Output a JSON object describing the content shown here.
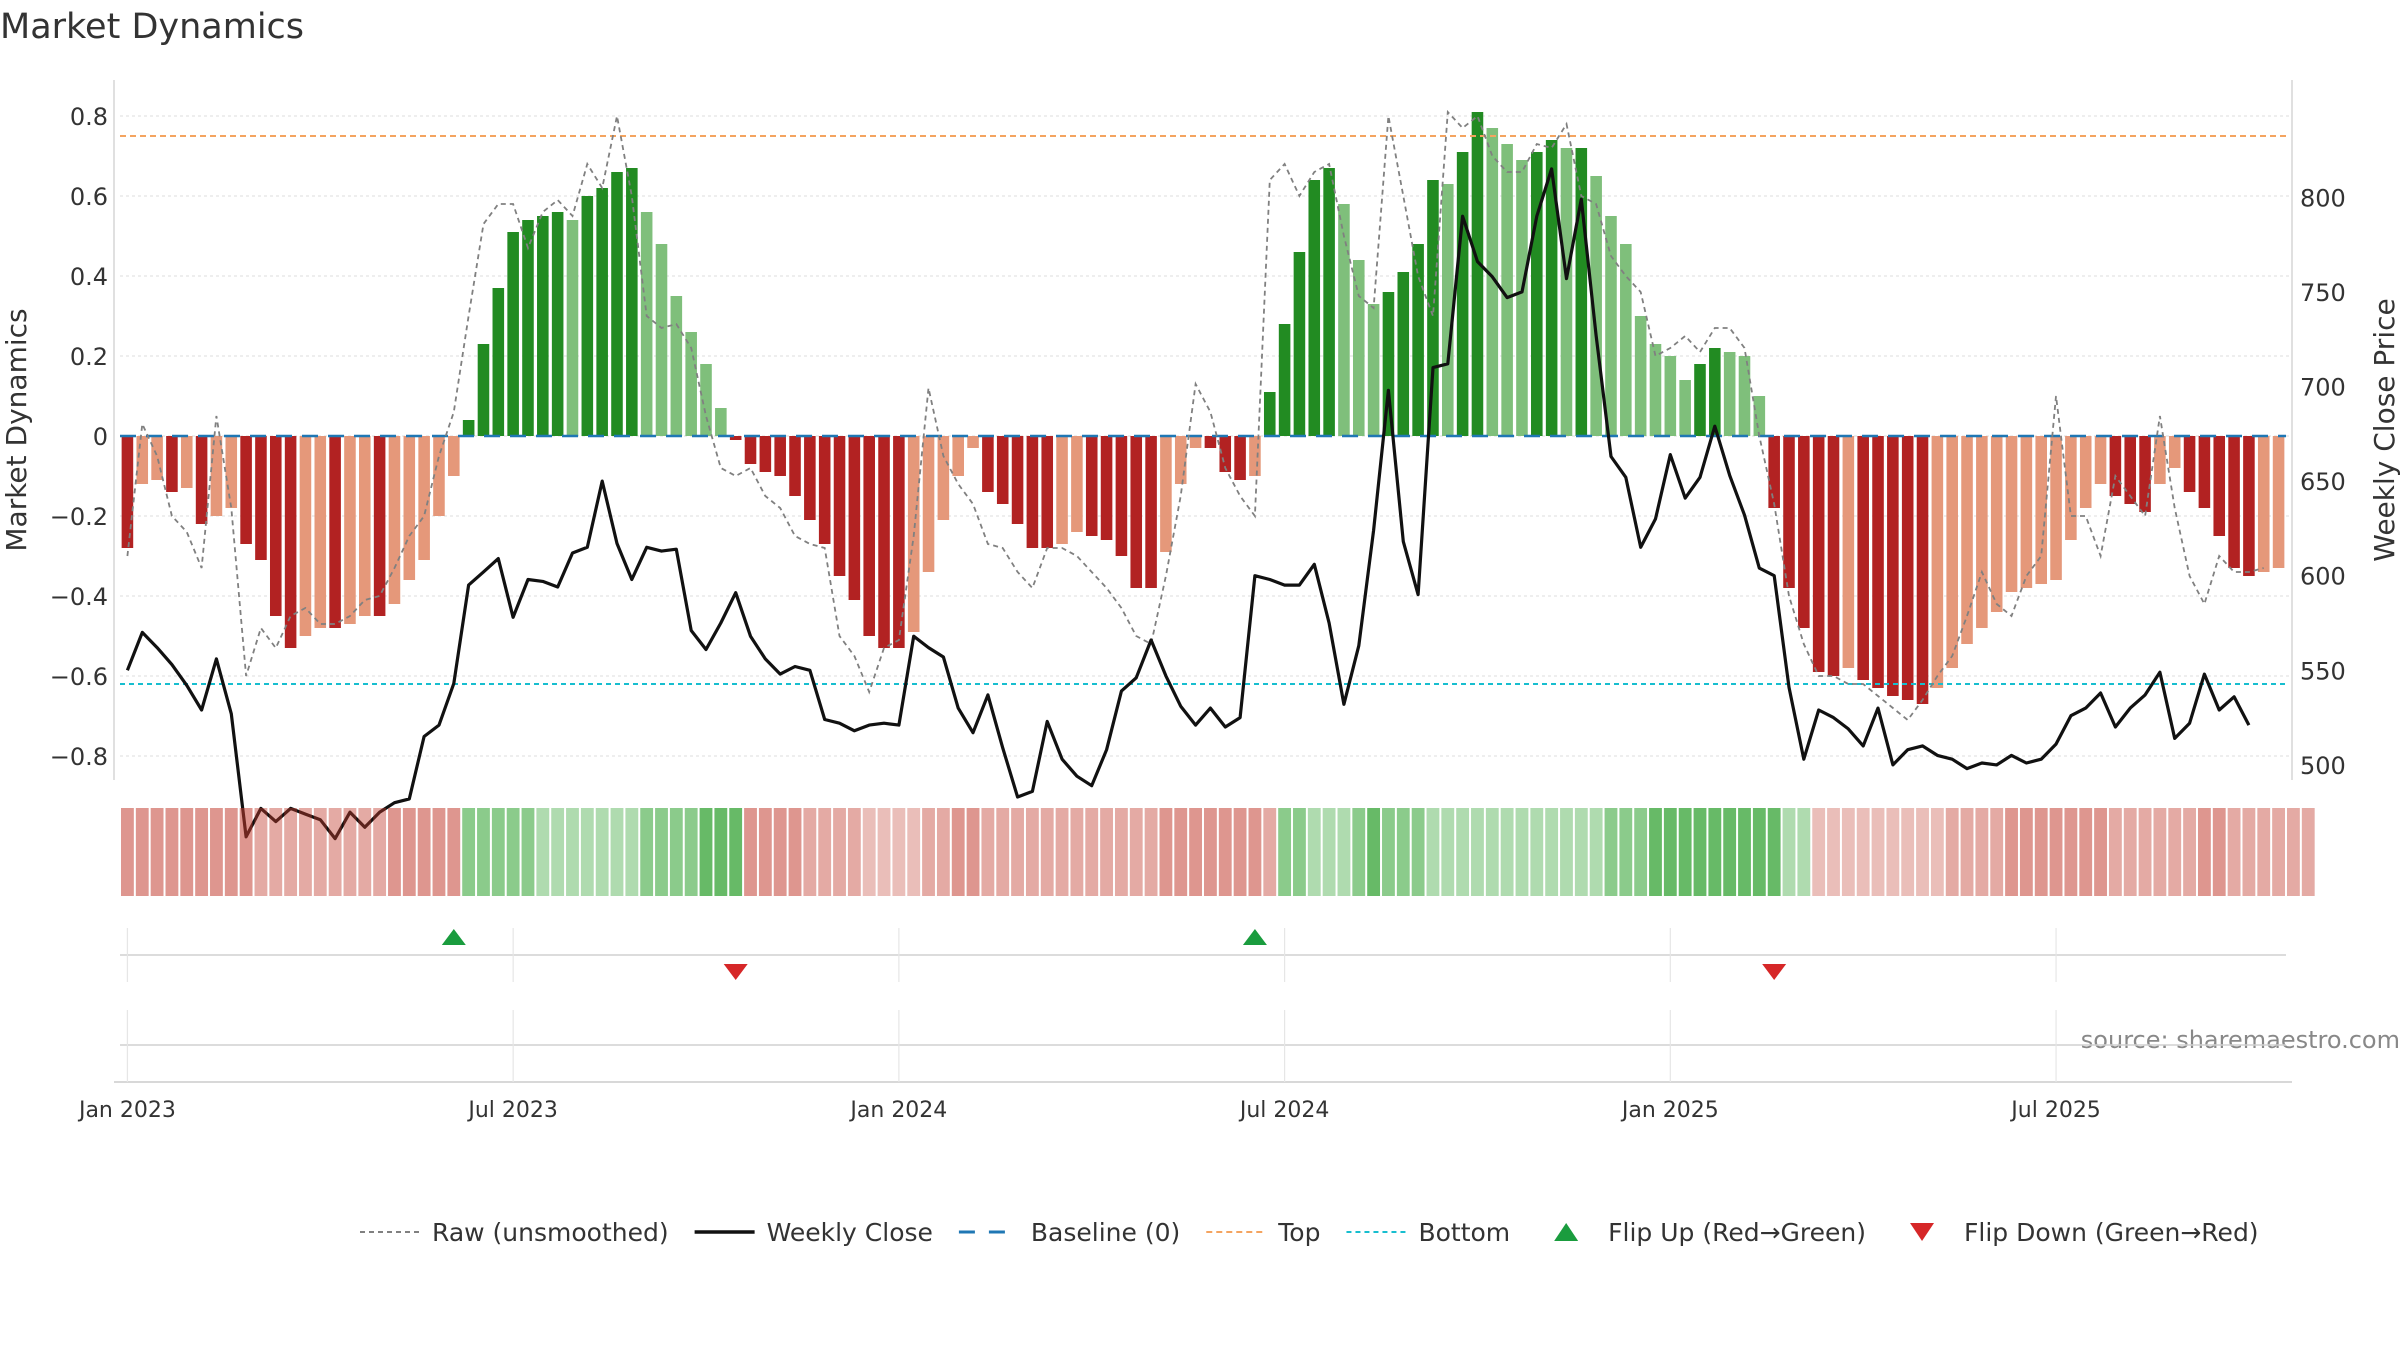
{
  "chart_data": {
    "type": "bar",
    "title": "Market Dynamics",
    "ylabel": "Market Dynamics",
    "y2label": "Weekly Close Price",
    "ylim": [
      -0.86,
      0.89
    ],
    "y2lim": [
      492,
      862
    ],
    "yticks": [
      -0.8,
      -0.6,
      -0.4,
      -0.2,
      0,
      0.2,
      0.4,
      0.6,
      0.8
    ],
    "ytick_labels": [
      "−0.8",
      "−0.6",
      "−0.4",
      "−0.2",
      "0",
      "0.2",
      "0.4",
      "0.6",
      "0.8"
    ],
    "y2ticks": [
      500,
      550,
      600,
      650,
      700,
      750,
      800
    ],
    "y2tick_labels": [
      "500",
      "550",
      "600",
      "650",
      "700",
      "750",
      "800"
    ],
    "x_start": "2022-12-26",
    "xticks": [
      {
        "label": "Jan 2023",
        "week": 1
      },
      {
        "label": "Jul 2023",
        "week": 27
      },
      {
        "label": "Jan 2024",
        "week": 53
      },
      {
        "label": "Jul 2024",
        "week": 79
      },
      {
        "label": "Jan 2025",
        "week": 105
      },
      {
        "label": "Jul 2025",
        "week": 131
      }
    ],
    "top_line": 0.75,
    "bottom_line": -0.62,
    "baseline": 0,
    "momentum": [
      -0.28,
      -0.12,
      -0.11,
      -0.14,
      -0.13,
      -0.22,
      -0.2,
      -0.18,
      -0.27,
      -0.31,
      -0.45,
      -0.53,
      -0.5,
      -0.48,
      -0.48,
      -0.47,
      -0.45,
      -0.45,
      -0.42,
      -0.36,
      -0.31,
      -0.2,
      -0.1,
      0.04,
      0.23,
      0.37,
      0.51,
      0.54,
      0.55,
      0.56,
      0.54,
      0.6,
      0.62,
      0.66,
      0.67,
      0.56,
      0.48,
      0.35,
      0.26,
      0.18,
      0.07,
      -0.01,
      -0.07,
      -0.09,
      -0.1,
      -0.15,
      -0.21,
      -0.27,
      -0.35,
      -0.41,
      -0.5,
      -0.53,
      -0.53,
      -0.49,
      -0.34,
      -0.21,
      -0.1,
      -0.03,
      -0.14,
      -0.17,
      -0.22,
      -0.28,
      -0.28,
      -0.27,
      -0.24,
      -0.25,
      -0.26,
      -0.3,
      -0.38,
      -0.38,
      -0.29,
      -0.12,
      -0.03,
      -0.03,
      -0.09,
      -0.11,
      -0.1,
      0.11,
      0.28,
      0.46,
      0.64,
      0.67,
      0.58,
      0.44,
      0.33,
      0.36,
      0.41,
      0.48,
      0.64,
      0.63,
      0.71,
      0.81,
      0.77,
      0.73,
      0.69,
      0.71,
      0.74,
      0.72,
      0.72,
      0.65,
      0.55,
      0.48,
      0.3,
      0.23,
      0.2,
      0.14,
      0.18,
      0.22,
      0.21,
      0.2,
      0.1,
      -0.18,
      -0.38,
      -0.48,
      -0.59,
      -0.6,
      -0.58,
      -0.61,
      -0.63,
      -0.65,
      -0.66,
      -0.67,
      -0.63,
      -0.58,
      -0.52,
      -0.48,
      -0.44,
      -0.39,
      -0.38,
      -0.37,
      -0.36,
      -0.26,
      -0.18,
      -0.12,
      -0.15,
      -0.17,
      -0.19,
      -0.12,
      -0.08,
      -0.14,
      -0.18,
      -0.25,
      -0.33,
      -0.35,
      -0.34,
      -0.33
    ],
    "raw": [
      -0.3,
      0.03,
      -0.05,
      -0.2,
      -0.24,
      -0.33,
      0.05,
      -0.18,
      -0.6,
      -0.48,
      -0.53,
      -0.45,
      -0.43,
      -0.47,
      -0.47,
      -0.45,
      -0.41,
      -0.4,
      -0.33,
      -0.25,
      -0.2,
      -0.05,
      0.06,
      0.3,
      0.53,
      0.58,
      0.58,
      0.47,
      0.56,
      0.59,
      0.55,
      0.68,
      0.62,
      0.8,
      0.6,
      0.3,
      0.27,
      0.28,
      0.22,
      0.05,
      -0.08,
      -0.1,
      -0.08,
      -0.15,
      -0.18,
      -0.25,
      -0.27,
      -0.28,
      -0.5,
      -0.55,
      -0.64,
      -0.53,
      -0.51,
      -0.25,
      0.12,
      -0.05,
      -0.12,
      -0.17,
      -0.27,
      -0.28,
      -0.34,
      -0.38,
      -0.28,
      -0.28,
      -0.3,
      -0.34,
      -0.38,
      -0.43,
      -0.5,
      -0.52,
      -0.35,
      -0.15,
      0.13,
      0.06,
      -0.08,
      -0.15,
      -0.2,
      0.64,
      0.68,
      0.6,
      0.66,
      0.68,
      0.5,
      0.35,
      0.32,
      0.8,
      0.6,
      0.4,
      0.3,
      0.81,
      0.77,
      0.8,
      0.7,
      0.66,
      0.66,
      0.73,
      0.72,
      0.78,
      0.6,
      0.58,
      0.45,
      0.4,
      0.36,
      0.2,
      0.22,
      0.25,
      0.21,
      0.27,
      0.27,
      0.22,
      0.0,
      -0.17,
      -0.4,
      -0.52,
      -0.6,
      -0.6,
      -0.62,
      -0.62,
      -0.65,
      -0.68,
      -0.71,
      -0.66,
      -0.6,
      -0.55,
      -0.45,
      -0.34,
      -0.42,
      -0.45,
      -0.35,
      -0.3,
      0.1,
      -0.2,
      -0.2,
      -0.3,
      -0.1,
      -0.15,
      -0.2,
      0.05,
      -0.18,
      -0.35,
      -0.42,
      -0.3,
      -0.34,
      -0.34,
      -0.33
    ],
    "close": [
      550,
      570,
      562,
      553,
      542,
      529,
      556,
      527,
      462,
      477,
      470,
      477,
      474,
      471,
      461,
      475,
      467,
      475,
      480,
      482,
      515,
      521,
      543,
      595,
      602,
      609,
      578,
      598,
      597,
      594,
      612,
      615,
      650,
      617,
      598,
      615,
      613,
      614,
      571,
      561,
      575,
      591,
      568,
      556,
      548,
      552,
      550,
      524,
      522,
      518,
      521,
      522,
      521,
      568,
      562,
      557,
      530,
      517,
      537,
      509,
      483,
      486,
      523,
      503,
      494,
      489,
      508,
      539,
      546,
      566,
      547,
      531,
      521,
      530,
      520,
      525,
      600,
      598,
      595,
      595,
      606,
      575,
      532,
      563,
      624,
      698,
      618,
      590,
      710,
      712,
      790,
      766,
      758,
      747,
      750,
      790,
      815,
      757,
      799,
      727,
      663,
      652,
      615,
      630,
      664,
      641,
      652,
      679,
      653,
      632,
      604,
      600,
      541,
      503,
      529,
      525,
      519,
      510,
      530,
      500,
      508,
      510,
      505,
      503,
      498,
      501,
      500,
      505,
      501,
      503,
      511,
      526,
      530,
      538,
      520,
      530,
      537,
      549,
      514,
      522,
      548,
      529,
      536,
      521
    ],
    "regime": [
      "R",
      "R",
      "R",
      "R",
      "R",
      "R",
      "R",
      "R",
      "R",
      "R",
      "R",
      "R",
      "R",
      "R",
      "R",
      "R",
      "R",
      "R",
      "R",
      "R",
      "R",
      "R",
      "R",
      "G",
      "G",
      "G",
      "G",
      "G",
      "G",
      "G",
      "G",
      "G",
      "G",
      "G",
      "G",
      "G",
      "G",
      "G",
      "G",
      "G",
      "G",
      "G",
      "R",
      "R",
      "R",
      "R",
      "R",
      "R",
      "R",
      "R",
      "R",
      "R",
      "R",
      "R",
      "R",
      "R",
      "R",
      "R",
      "R",
      "R",
      "R",
      "R",
      "R",
      "R",
      "R",
      "R",
      "R",
      "R",
      "R",
      "R",
      "R",
      "R",
      "R",
      "R",
      "R",
      "R",
      "R",
      "R",
      "G",
      "G",
      "G",
      "G",
      "G",
      "G",
      "G",
      "G",
      "G",
      "G",
      "G",
      "G",
      "G",
      "G",
      "G",
      "G",
      "G",
      "G",
      "G",
      "G",
      "G",
      "G",
      "G",
      "G",
      "G",
      "G",
      "G",
      "G",
      "G",
      "G",
      "G",
      "G",
      "G",
      "G",
      "G",
      "G",
      "R",
      "R",
      "R",
      "R",
      "R",
      "R",
      "R",
      "R",
      "R",
      "R",
      "R",
      "R",
      "R",
      "R",
      "R",
      "R",
      "R",
      "R",
      "R",
      "R",
      "R",
      "R",
      "R",
      "R",
      "R",
      "R",
      "R",
      "R",
      "R",
      "R",
      "R",
      "R",
      "R",
      "R"
    ],
    "regime_shade": [
      3,
      3,
      3,
      3,
      3,
      3,
      3,
      3,
      3,
      2,
      2,
      2,
      2,
      2,
      2,
      2,
      2,
      2,
      3,
      3,
      3,
      3,
      3,
      2,
      2,
      2,
      2,
      2,
      1,
      1,
      1,
      1,
      1,
      1,
      1,
      2,
      2,
      2,
      2,
      3,
      3,
      3,
      3,
      3,
      3,
      3,
      2,
      2,
      2,
      2,
      1,
      1,
      1,
      1,
      2,
      2,
      3,
      3,
      2,
      2,
      2,
      2,
      2,
      2,
      2,
      2,
      2,
      2,
      2,
      2,
      3,
      3,
      3,
      3,
      3,
      3,
      3,
      2,
      2,
      2,
      1,
      1,
      1,
      2,
      3,
      2,
      2,
      2,
      1,
      1,
      1,
      1,
      1,
      1,
      1,
      1,
      1,
      1,
      1,
      1,
      2,
      2,
      2,
      3,
      3,
      3,
      3,
      3,
      3,
      3,
      3,
      3,
      1,
      1,
      1,
      1,
      1,
      1,
      1,
      1,
      1,
      1,
      1,
      2,
      2,
      2,
      2,
      3,
      3,
      3,
      3,
      3,
      3,
      3,
      2,
      2,
      2,
      2,
      2,
      2,
      3,
      3,
      2,
      2,
      2,
      2,
      2,
      2
    ],
    "flips": [
      {
        "week": 23,
        "direction": "up"
      },
      {
        "week": 42,
        "direction": "down"
      },
      {
        "week": 77,
        "direction": "up"
      },
      {
        "week": 112,
        "direction": "down"
      }
    ],
    "colors": {
      "green_strong": "#228b22",
      "green_weak": "#7fbf7b",
      "red_strong": "#b22222",
      "red_weak": "#e5987a",
      "raw_line": "#808080",
      "close_line": "#111111",
      "baseline": "#1f77b4",
      "top": "#f4a460",
      "bottom": "#17becf",
      "flip_up": "#1a9c3e",
      "flip_down": "#d62728",
      "shade_green": "#2ca02c",
      "shade_red": "#c0392b"
    },
    "legend": [
      {
        "label": "Raw (unsmoothed)",
        "kind": "raw"
      },
      {
        "label": "Weekly Close",
        "kind": "close"
      },
      {
        "label": "Baseline (0)",
        "kind": "baseline"
      },
      {
        "label": "Top",
        "kind": "top"
      },
      {
        "label": "Bottom",
        "kind": "bottom"
      },
      {
        "label": "Flip Up (Red→Green)",
        "kind": "flip_up"
      },
      {
        "label": "Flip Down (Green→Red)",
        "kind": "flip_down"
      }
    ],
    "legend_position": "bottom-center",
    "source": "source: sharemaestro.com"
  }
}
